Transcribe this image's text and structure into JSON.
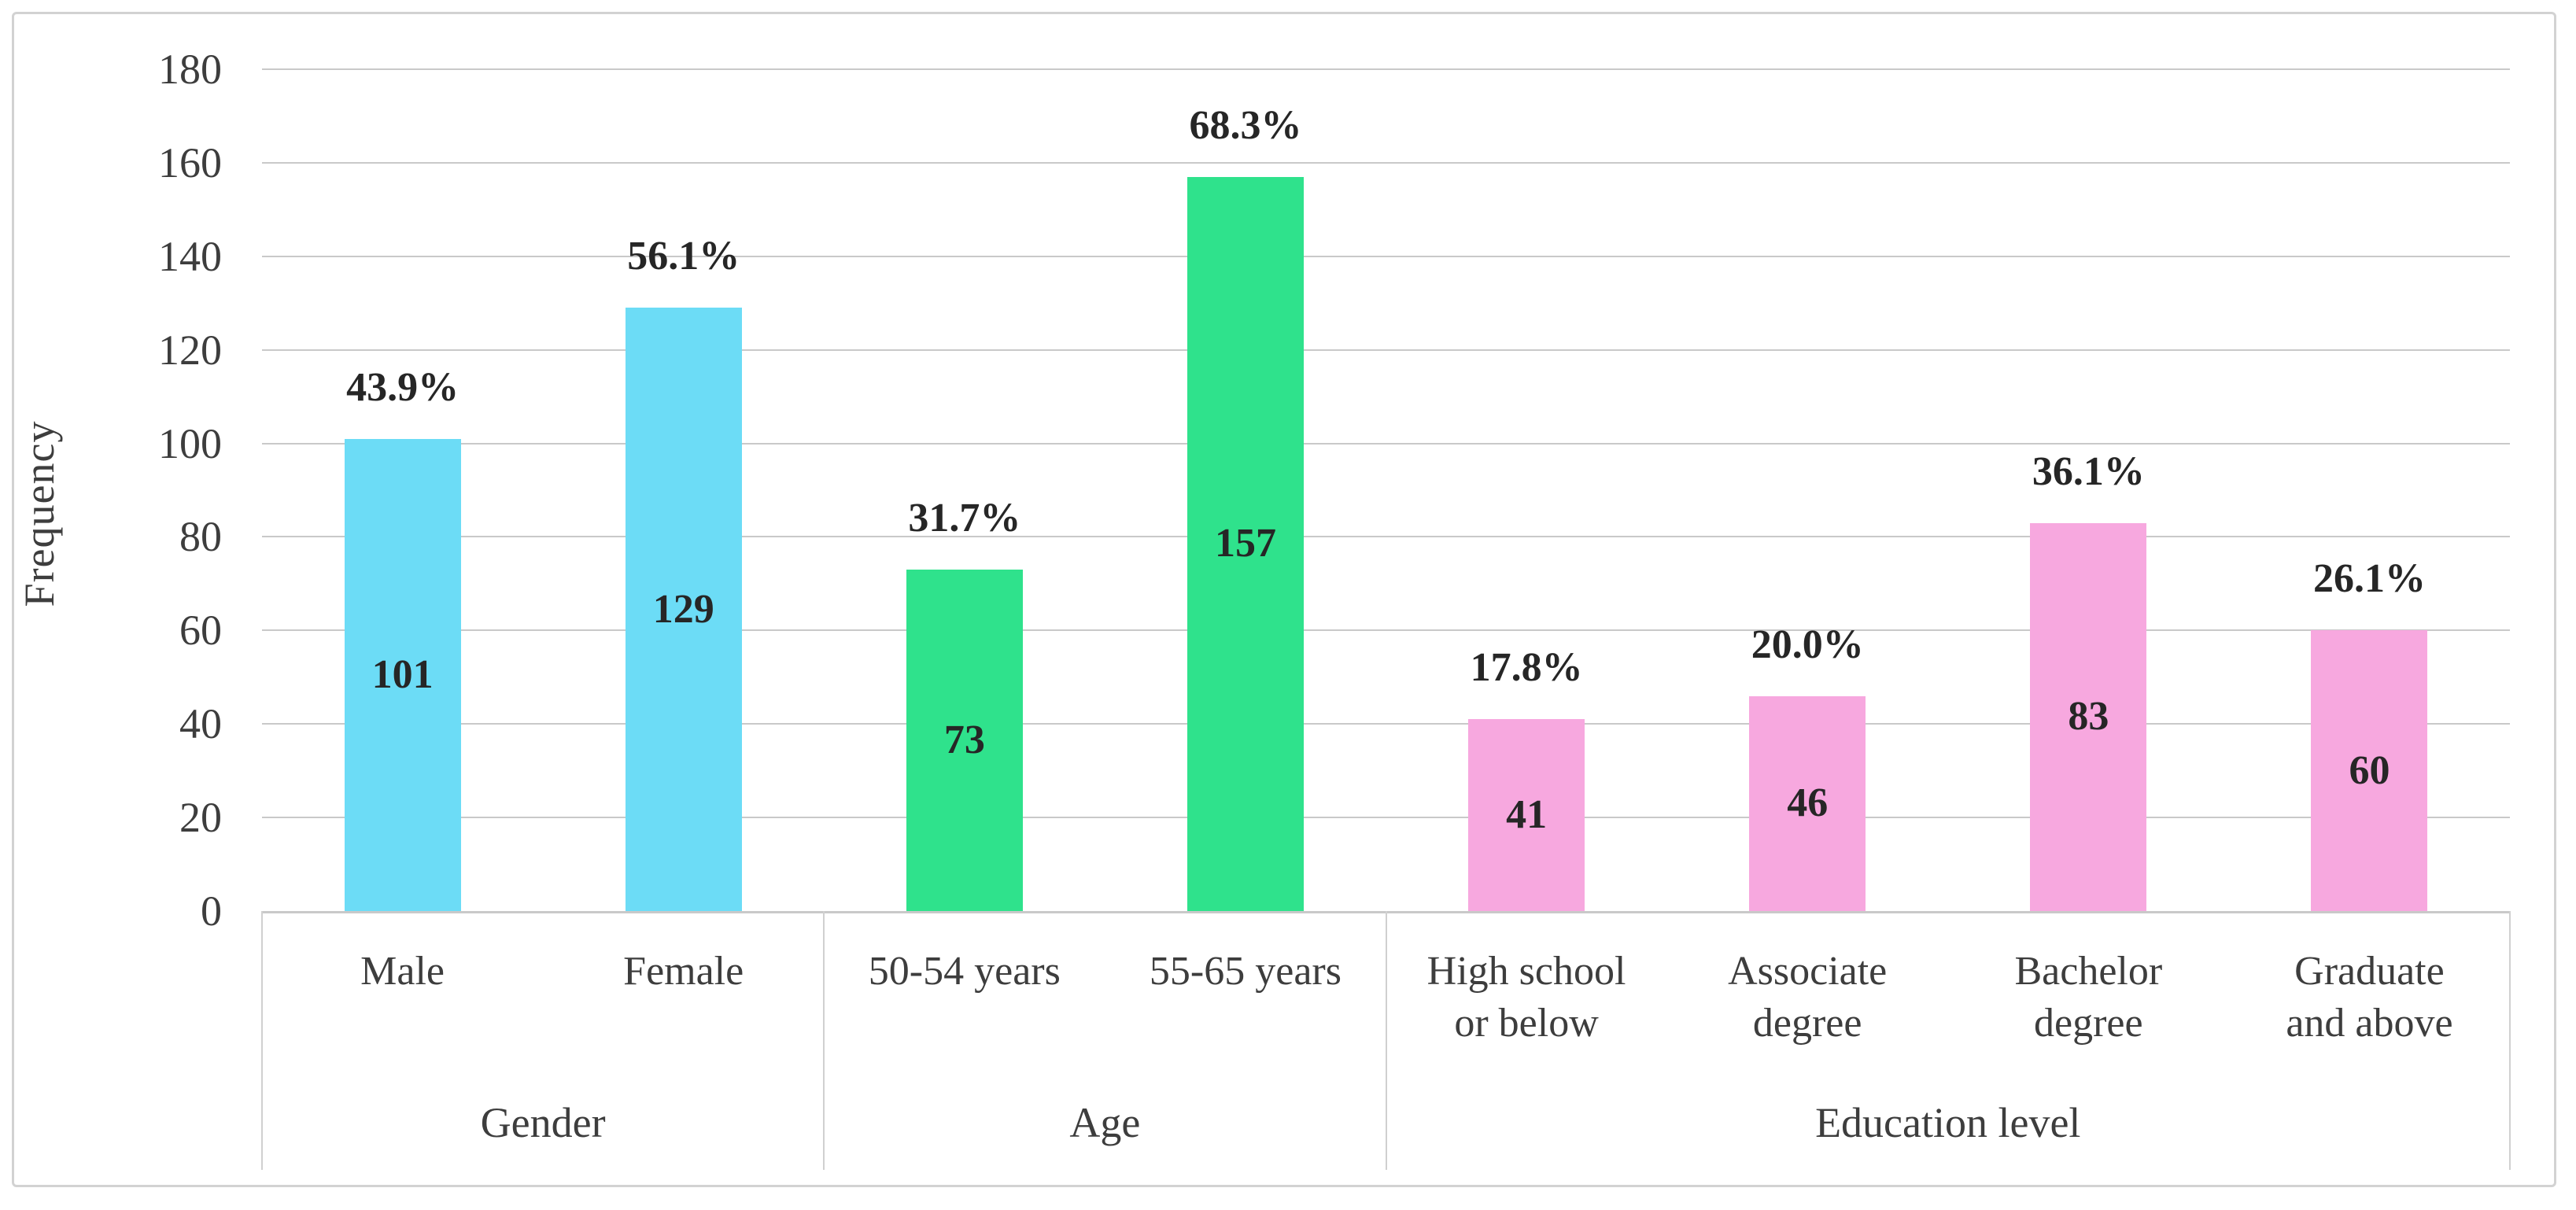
{
  "chart_data": {
    "type": "bar",
    "title": "",
    "xlabel": "",
    "ylabel": "Frequency",
    "ylim": [
      0,
      180
    ],
    "ytick_step": 20,
    "y_ticks": [
      0,
      20,
      40,
      60,
      80,
      100,
      120,
      140,
      160,
      180
    ],
    "grid": true,
    "legend": "none",
    "groups": [
      {
        "label": "Gender",
        "color": "#6CDCF6",
        "bars": [
          {
            "category": "Male",
            "value": 101,
            "percent_label": "43.9%"
          },
          {
            "category": "Female",
            "value": 129,
            "percent_label": "56.1%"
          }
        ]
      },
      {
        "label": "Age",
        "color": "#2FE28C",
        "bars": [
          {
            "category": "50-54 years",
            "value": 73,
            "percent_label": "31.7%"
          },
          {
            "category": "55-65 years",
            "value": 157,
            "percent_label": "68.3%"
          }
        ]
      },
      {
        "label": "Education level",
        "color": "#F7A8DF",
        "bars": [
          {
            "category": "High school\nor below",
            "value": 41,
            "percent_label": "17.8%"
          },
          {
            "category": "Associate\ndegree",
            "value": 46,
            "percent_label": "20.0%"
          },
          {
            "category": "Bachelor\ndegree",
            "value": 83,
            "percent_label": "36.1%"
          },
          {
            "category": "Graduate\nand above",
            "value": 60,
            "percent_label": "26.1%"
          }
        ]
      }
    ]
  }
}
